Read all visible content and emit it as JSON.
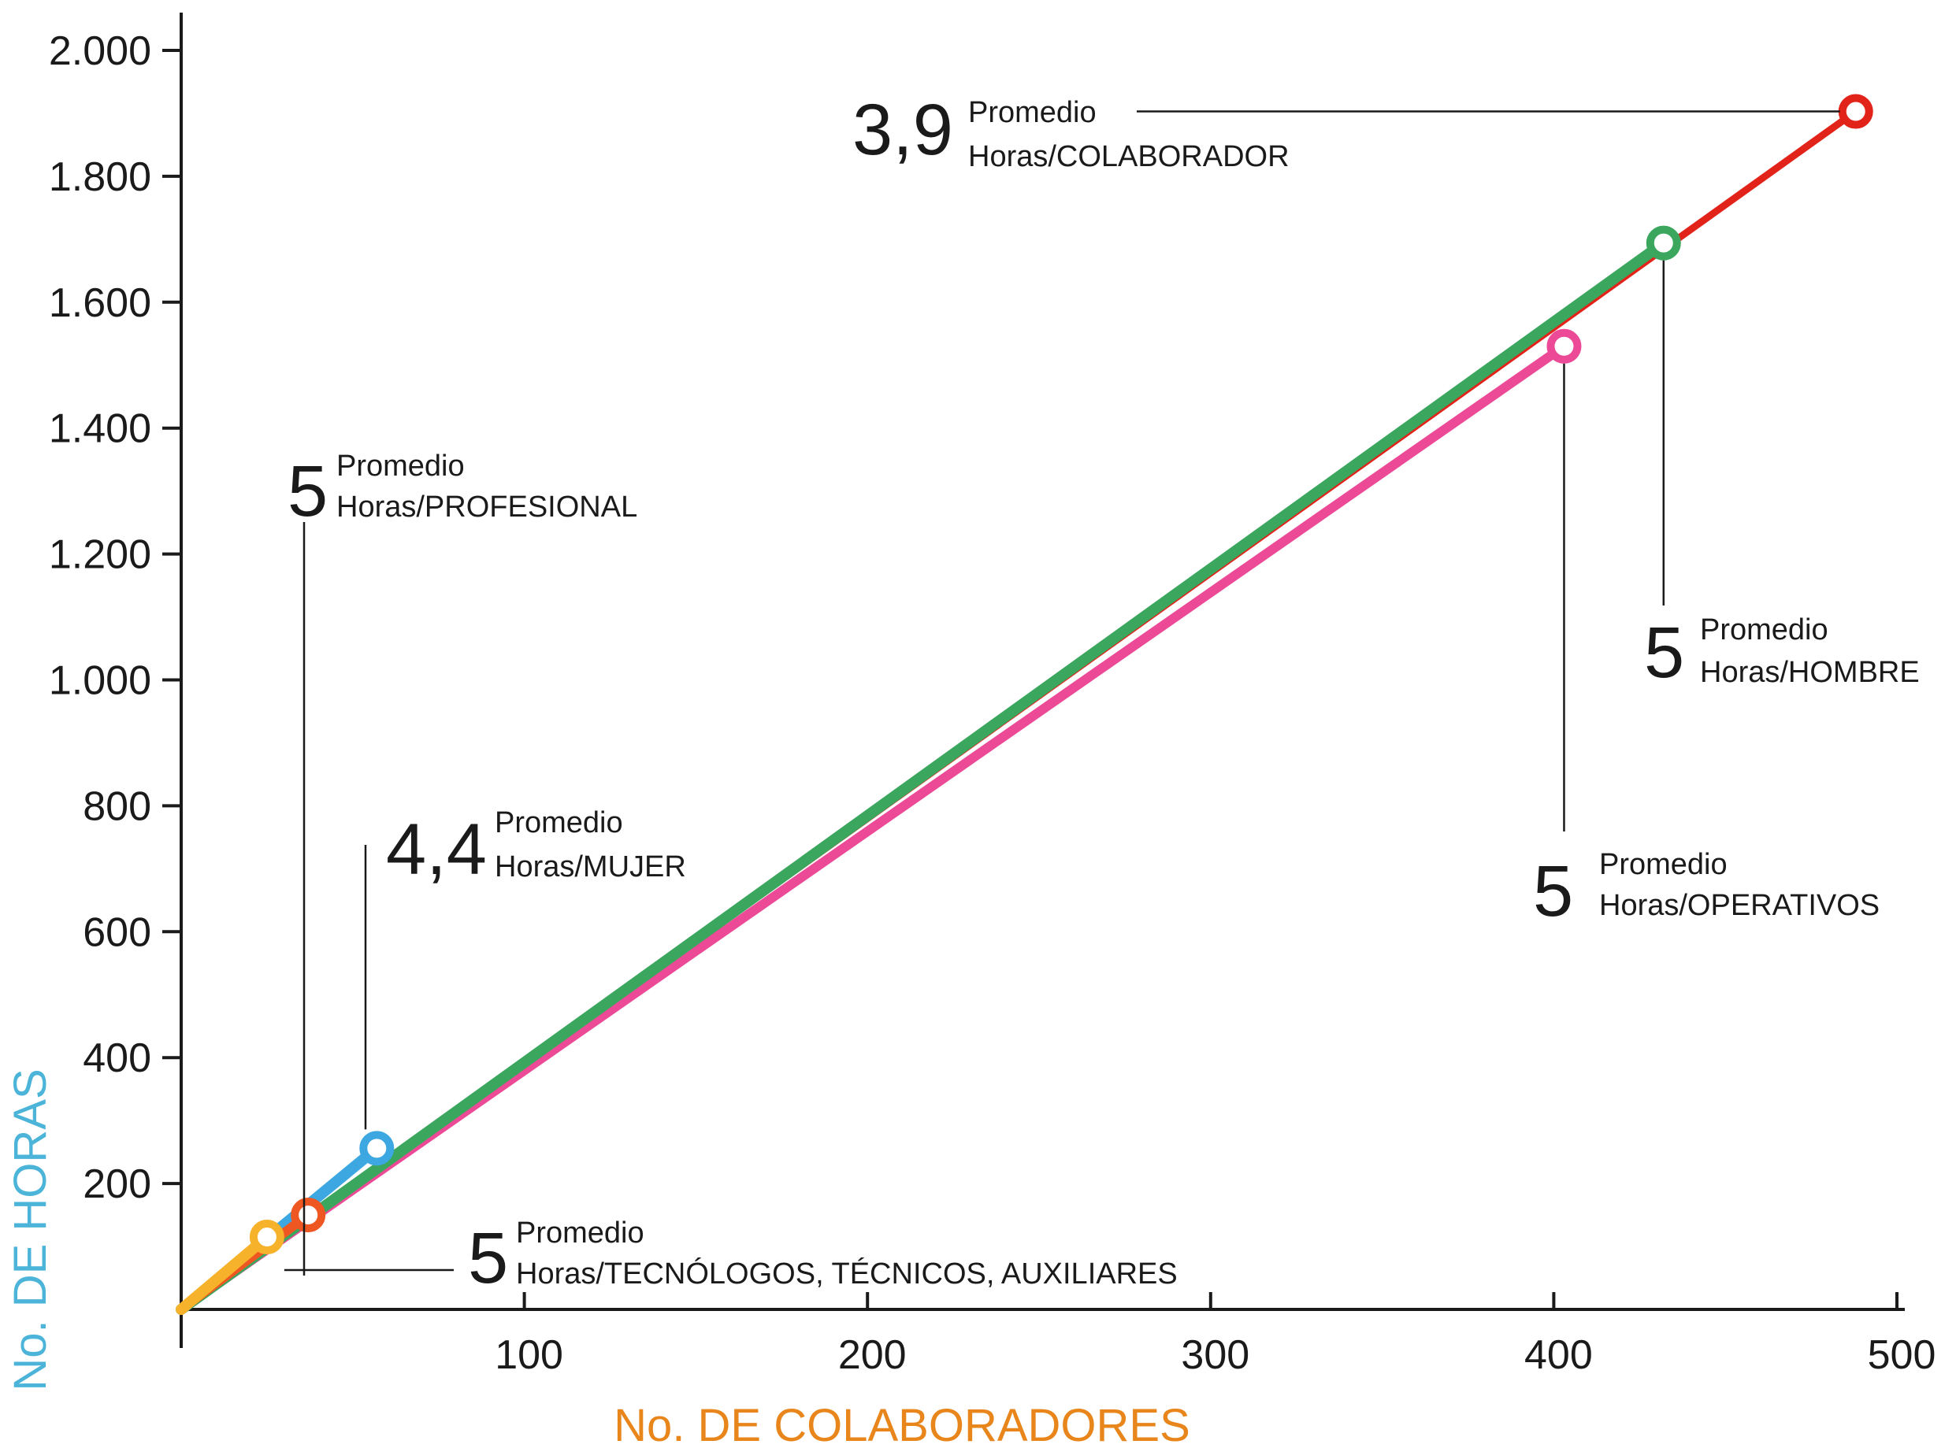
{
  "chart_data": {
    "type": "line",
    "xlabel": "No. DE COLABORADORES",
    "ylabel": "No. DE HORAS",
    "xlim": [
      0,
      500
    ],
    "ylim": [
      0,
      2000
    ],
    "x_ticks": [
      {
        "value": 100,
        "label": "100"
      },
      {
        "value": 200,
        "label": "200"
      },
      {
        "value": 300,
        "label": "300"
      },
      {
        "value": 400,
        "label": "400"
      },
      {
        "value": 500,
        "label": "500"
      }
    ],
    "y_ticks": [
      {
        "value": 200,
        "label": "200"
      },
      {
        "value": 400,
        "label": "400"
      },
      {
        "value": 600,
        "label": "600"
      },
      {
        "value": 800,
        "label": "800"
      },
      {
        "value": 1000,
        "label": "1.000"
      },
      {
        "value": 1200,
        "label": "1.200"
      },
      {
        "value": 1400,
        "label": "1.400"
      },
      {
        "value": 1600,
        "label": "1.600"
      },
      {
        "value": 1800,
        "label": "1.800"
      },
      {
        "value": 2000,
        "label": "2.000"
      }
    ],
    "grid": false,
    "series": [
      {
        "color": "#e2231a",
        "stroke": 9,
        "z": 1,
        "points": [
          [
            0,
            0
          ],
          [
            488,
            1903
          ]
        ],
        "marker": [
          488,
          1903
        ]
      },
      {
        "color": "#ec4a97",
        "stroke": 12,
        "z": 2,
        "points": [
          [
            0,
            0
          ],
          [
            403,
            1530
          ]
        ],
        "marker": [
          403,
          1530
        ]
      },
      {
        "color": "#3aa65e",
        "stroke": 14,
        "z": 3,
        "points": [
          [
            0,
            0
          ],
          [
            432,
            1694
          ]
        ],
        "marker": [
          432,
          1694
        ]
      },
      {
        "color": "#3ca7e0",
        "stroke": 14,
        "z": 4,
        "points": [
          [
            0,
            0
          ],
          [
            57,
            256
          ]
        ],
        "marker": [
          57,
          256
        ]
      },
      {
        "color": "#ee5722",
        "stroke": 12,
        "z": 5,
        "points": [
          [
            0,
            0
          ],
          [
            37,
            150
          ]
        ],
        "marker": [
          37,
          150
        ]
      },
      {
        "color": "#f6b22b",
        "stroke": 14,
        "z": 6,
        "points": [
          [
            0,
            0
          ],
          [
            25,
            115
          ]
        ],
        "marker": [
          25,
          115
        ]
      }
    ],
    "annotations": [
      {
        "id": "colaborador",
        "value": "3,9",
        "line1": "Promedio",
        "line2": "Horas/COLABORADOR"
      },
      {
        "id": "profesional",
        "value": "5",
        "line1": "Promedio",
        "line2": "Horas/PROFESIONAL"
      },
      {
        "id": "mujer",
        "value": "4,4",
        "line1": "Promedio",
        "line2": "Horas/MUJER"
      },
      {
        "id": "tecnologos",
        "value": "5",
        "line1": "Promedio",
        "line2": "Horas/TECNÓLOGOS, TÉCNICOS, AUXILIARES"
      },
      {
        "id": "hombre",
        "value": "5",
        "line1": "Promedio",
        "line2": "Horas/HOMBRE"
      },
      {
        "id": "operativos",
        "value": "5",
        "line1": "Promedio",
        "line2": "Horas/OPERATIVOS"
      }
    ]
  }
}
